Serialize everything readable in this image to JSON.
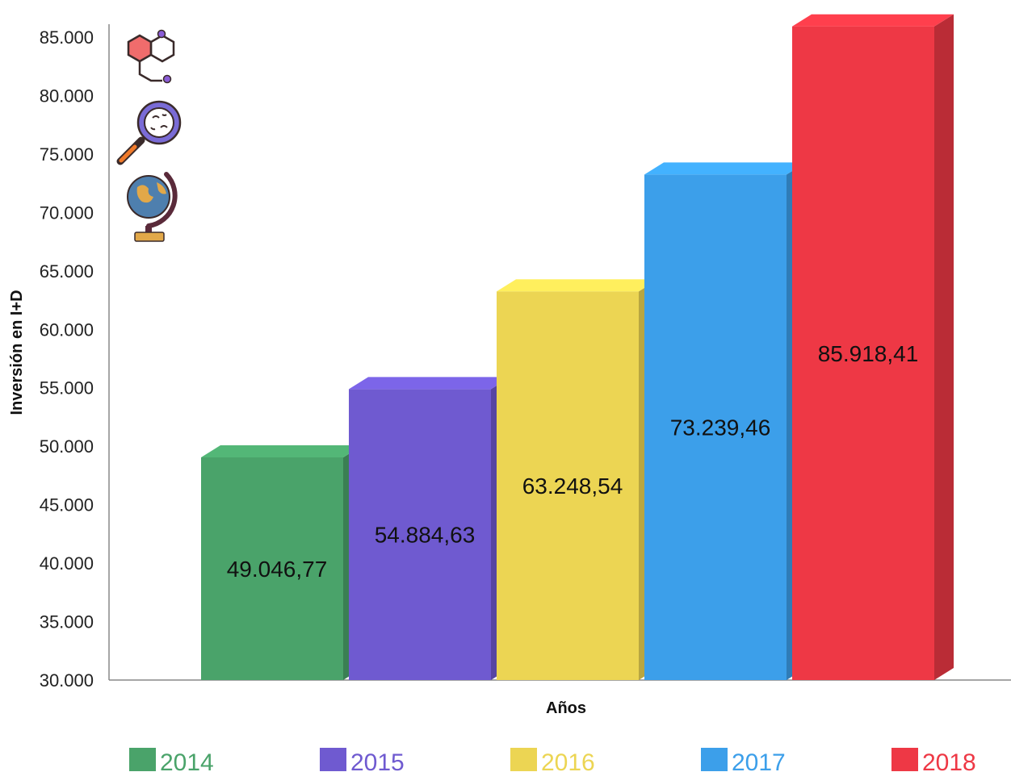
{
  "chart_data": {
    "type": "bar",
    "title": "",
    "xlabel": "Años",
    "ylabel": "Inversión en I+D",
    "categories": [
      "2014",
      "2015",
      "2016",
      "2017",
      "2018"
    ],
    "values": [
      49046.77,
      54884.63,
      63248.54,
      73239.46,
      85918.41
    ],
    "value_labels": [
      "49.046,77",
      "54.884,63",
      "63.248,54",
      "73.239,46",
      "85.918,41"
    ],
    "colors": [
      "#4aa36a",
      "#6f5ad0",
      "#ecd553",
      "#3c9fea",
      "#ee3845"
    ],
    "ylim": [
      30000,
      85000
    ],
    "yticks": [
      30000,
      35000,
      40000,
      45000,
      50000,
      55000,
      60000,
      65000,
      70000,
      75000,
      80000,
      85000
    ],
    "ytick_labels": [
      "30.000",
      "35.000",
      "40.000",
      "45.000",
      "50.000",
      "55.000",
      "60.000",
      "65.000",
      "70.000",
      "75.000",
      "80.000",
      "85.000"
    ],
    "legend": {
      "position": "bottom",
      "entries": [
        "2014",
        "2015",
        "2016",
        "2017",
        "2018"
      ]
    },
    "grid": false,
    "style": "3d-bars"
  },
  "decorations": {
    "icons": [
      "molecule-icon",
      "magnifier-bacteria-icon",
      "globe-icon"
    ]
  }
}
